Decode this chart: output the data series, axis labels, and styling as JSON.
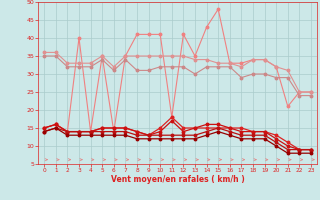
{
  "x": [
    0,
    1,
    2,
    3,
    4,
    5,
    6,
    7,
    8,
    9,
    10,
    11,
    12,
    13,
    14,
    15,
    16,
    17,
    18,
    19,
    20,
    21,
    22,
    23
  ],
  "line_spike": [
    15,
    16,
    14,
    40,
    14,
    35,
    14,
    35,
    41,
    41,
    41,
    18,
    41,
    35,
    43,
    48,
    33,
    33,
    34,
    34,
    32,
    21,
    25,
    25
  ],
  "line_flat1": [
    36,
    36,
    33,
    33,
    33,
    35,
    32,
    35,
    35,
    35,
    35,
    35,
    35,
    34,
    34,
    33,
    33,
    32,
    34,
    34,
    32,
    31,
    25,
    25
  ],
  "line_flat2": [
    35,
    35,
    32,
    32,
    32,
    34,
    31,
    34,
    31,
    31,
    32,
    32,
    32,
    30,
    32,
    32,
    32,
    29,
    30,
    30,
    29,
    29,
    24,
    24
  ],
  "line_lower1": [
    15,
    16,
    14,
    14,
    14,
    15,
    15,
    15,
    14,
    13,
    15,
    18,
    15,
    15,
    15,
    15,
    15,
    15,
    14,
    14,
    13,
    11,
    9,
    9
  ],
  "line_lower2": [
    15,
    16,
    14,
    14,
    14,
    15,
    15,
    15,
    14,
    13,
    14,
    17,
    14,
    15,
    16,
    16,
    15,
    14,
    14,
    14,
    12,
    10,
    9,
    9
  ],
  "line_lower3": [
    14,
    15,
    14,
    14,
    14,
    14,
    14,
    14,
    13,
    13,
    13,
    13,
    13,
    13,
    14,
    15,
    14,
    13,
    13,
    13,
    11,
    9,
    9,
    9
  ],
  "line_lower4": [
    14,
    15,
    13,
    13,
    13,
    13,
    13,
    13,
    12,
    12,
    12,
    12,
    12,
    12,
    13,
    14,
    13,
    12,
    12,
    12,
    10,
    8,
    8,
    8
  ],
  "bg_color": "#cce8e8",
  "grid_color": "#aacccc",
  "color_spike": "#f08080",
  "color_flat1": "#e09090",
  "color_flat2": "#cc8888",
  "color_lower1": "#dd2222",
  "color_lower2": "#cc1111",
  "color_lower3": "#bb1111",
  "color_lower4": "#990000",
  "xlabel": "Vent moyen/en rafales ( km/h )",
  "ylim": [
    5,
    50
  ],
  "yticks": [
    5,
    10,
    15,
    20,
    25,
    30,
    35,
    40,
    45,
    50
  ],
  "xticks": [
    0,
    1,
    2,
    3,
    4,
    5,
    6,
    7,
    8,
    9,
    10,
    11,
    12,
    13,
    14,
    15,
    16,
    17,
    18,
    19,
    20,
    21,
    22,
    23
  ]
}
